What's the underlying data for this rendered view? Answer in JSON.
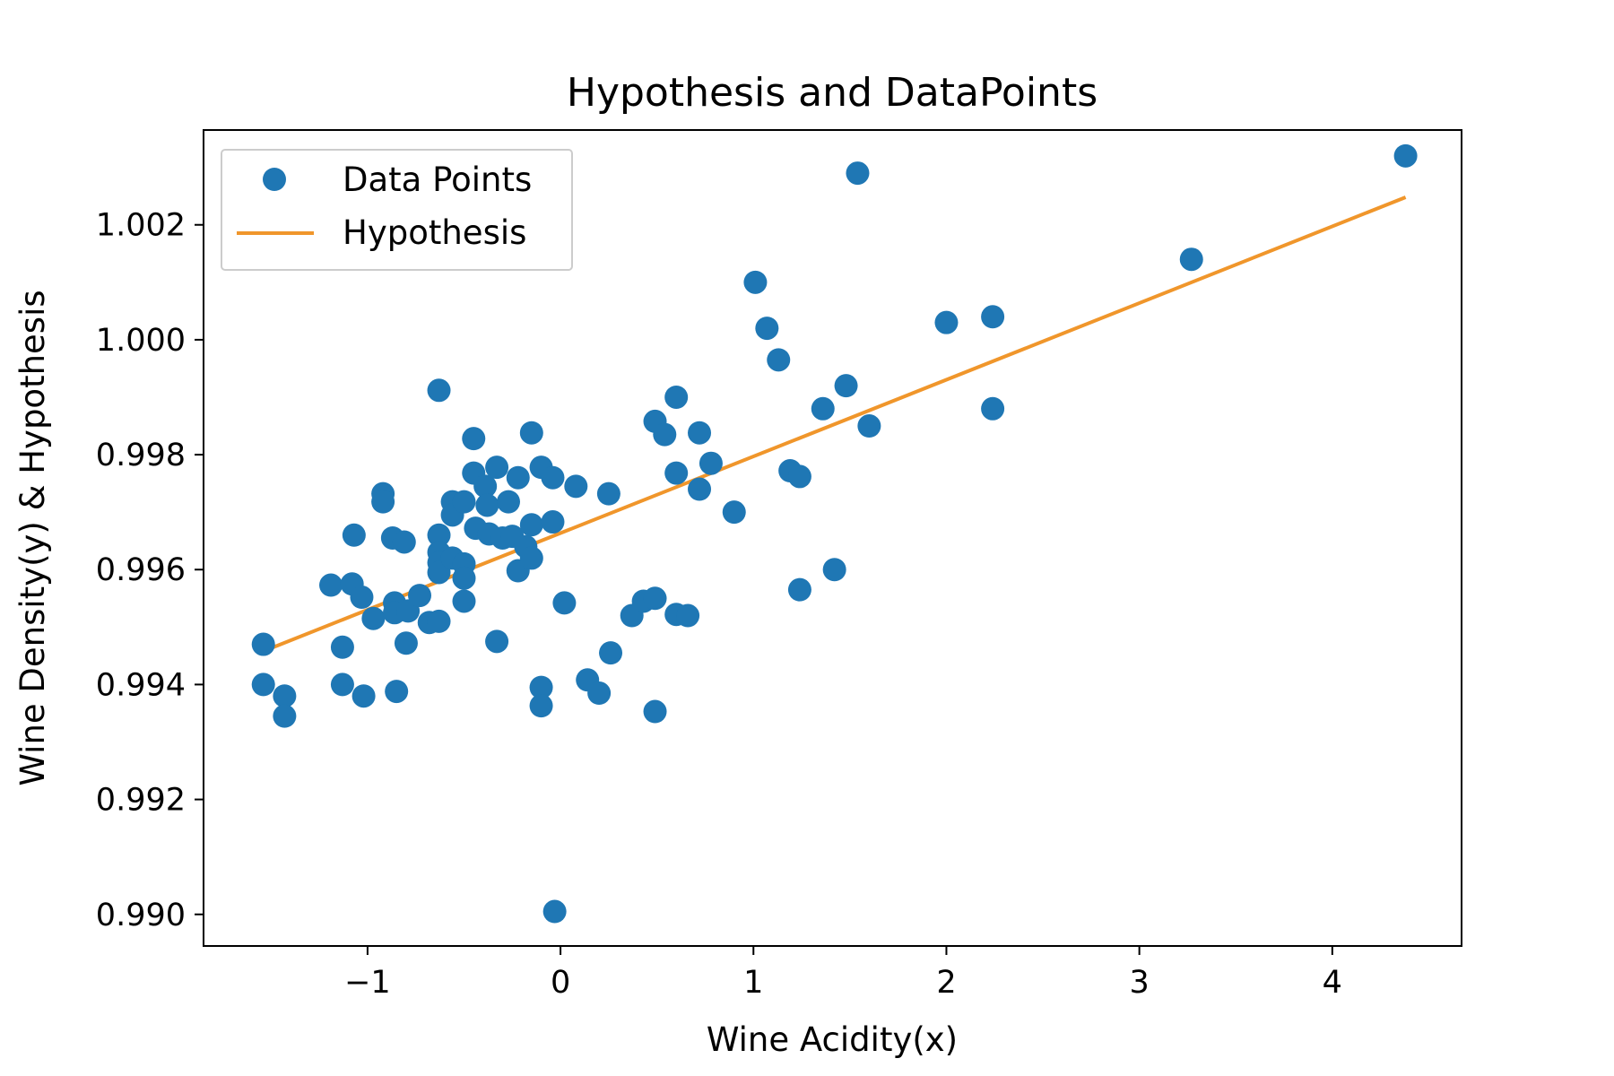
{
  "chart_data": {
    "type": "scatter",
    "title": "Hypothesis and DataPoints",
    "xlabel": "Wine Acidity(x)",
    "ylabel": "Wine Density(y) & Hypothesis",
    "xlim": [
      -1.85,
      4.67
    ],
    "ylim": [
      0.98945,
      1.00365
    ],
    "xticks": [
      {
        "value": -1,
        "label": "−1"
      },
      {
        "value": 0,
        "label": "0"
      },
      {
        "value": 1,
        "label": "1"
      },
      {
        "value": 2,
        "label": "2"
      },
      {
        "value": 3,
        "label": "3"
      },
      {
        "value": 4,
        "label": "4"
      }
    ],
    "yticks": [
      {
        "value": 0.99,
        "label": "0.990"
      },
      {
        "value": 0.992,
        "label": "0.992"
      },
      {
        "value": 0.994,
        "label": "0.994"
      },
      {
        "value": 0.996,
        "label": "0.996"
      },
      {
        "value": 0.998,
        "label": "0.998"
      },
      {
        "value": 1.0,
        "label": "1.000"
      },
      {
        "value": 1.002,
        "label": "1.002"
      }
    ],
    "grid": false,
    "legend_position": "top-left",
    "series": [
      {
        "name": "Data Points",
        "kind": "scatter",
        "color": "#1f77b4",
        "points": [
          [
            -1.54,
            0.9947
          ],
          [
            -1.54,
            0.994
          ],
          [
            -1.43,
            0.9938
          ],
          [
            -1.43,
            0.99345
          ],
          [
            -1.19,
            0.99573
          ],
          [
            -1.13,
            0.99465
          ],
          [
            -1.13,
            0.994
          ],
          [
            -1.08,
            0.99575
          ],
          [
            -1.07,
            0.9966
          ],
          [
            -1.03,
            0.99552
          ],
          [
            -1.02,
            0.9938
          ],
          [
            -0.97,
            0.99515
          ],
          [
            -0.92,
            0.99732
          ],
          [
            -0.92,
            0.99718
          ],
          [
            -0.87,
            0.99655
          ],
          [
            -0.86,
            0.99542
          ],
          [
            -0.86,
            0.99525
          ],
          [
            -0.85,
            0.99388
          ],
          [
            -0.81,
            0.99648
          ],
          [
            -0.8,
            0.99472
          ],
          [
            -0.79,
            0.99528
          ],
          [
            -0.73,
            0.99555
          ],
          [
            -0.68,
            0.99508
          ],
          [
            -0.63,
            0.99912
          ],
          [
            -0.63,
            0.9966
          ],
          [
            -0.63,
            0.9963
          ],
          [
            -0.63,
            0.99612
          ],
          [
            -0.63,
            0.99595
          ],
          [
            -0.63,
            0.9951
          ],
          [
            -0.56,
            0.99718
          ],
          [
            -0.56,
            0.99695
          ],
          [
            -0.56,
            0.9962
          ],
          [
            -0.5,
            0.99718
          ],
          [
            -0.5,
            0.9961
          ],
          [
            -0.5,
            0.99585
          ],
          [
            -0.5,
            0.99545
          ],
          [
            -0.45,
            0.99828
          ],
          [
            -0.45,
            0.99768
          ],
          [
            -0.44,
            0.99672
          ],
          [
            -0.39,
            0.99745
          ],
          [
            -0.38,
            0.99712
          ],
          [
            -0.37,
            0.99662
          ],
          [
            -0.33,
            0.99778
          ],
          [
            -0.33,
            0.99475
          ],
          [
            -0.3,
            0.99655
          ],
          [
            -0.27,
            0.99718
          ],
          [
            -0.25,
            0.99658
          ],
          [
            -0.22,
            0.9976
          ],
          [
            -0.22,
            0.99598
          ],
          [
            -0.18,
            0.9964
          ],
          [
            -0.15,
            0.99838
          ],
          [
            -0.15,
            0.99678
          ],
          [
            -0.15,
            0.9962
          ],
          [
            -0.1,
            0.99778
          ],
          [
            -0.1,
            0.99395
          ],
          [
            -0.1,
            0.99363
          ],
          [
            -0.04,
            0.9976
          ],
          [
            -0.04,
            0.99683
          ],
          [
            -0.03,
            0.99005
          ],
          [
            0.02,
            0.99542
          ],
          [
            0.08,
            0.99745
          ],
          [
            0.14,
            0.99408
          ],
          [
            0.2,
            0.99385
          ],
          [
            0.25,
            0.99732
          ],
          [
            0.26,
            0.99455
          ],
          [
            0.37,
            0.9952
          ],
          [
            0.43,
            0.99545
          ],
          [
            0.49,
            0.99858
          ],
          [
            0.49,
            0.9955
          ],
          [
            0.49,
            0.99353
          ],
          [
            0.54,
            0.99835
          ],
          [
            0.6,
            0.999
          ],
          [
            0.6,
            0.99768
          ],
          [
            0.6,
            0.99522
          ],
          [
            0.66,
            0.9952
          ],
          [
            0.72,
            0.99838
          ],
          [
            0.72,
            0.9974
          ],
          [
            0.78,
            0.99785
          ],
          [
            0.9,
            0.997
          ],
          [
            1.01,
            1.001
          ],
          [
            1.07,
            1.0002
          ],
          [
            1.13,
            0.99965
          ],
          [
            1.19,
            0.99772
          ],
          [
            1.24,
            0.99762
          ],
          [
            1.24,
            0.99565
          ],
          [
            1.36,
            0.9988
          ],
          [
            1.42,
            0.996
          ],
          [
            1.48,
            0.9992
          ],
          [
            1.54,
            1.0029
          ],
          [
            1.6,
            0.9985
          ],
          [
            2.0,
            1.0003
          ],
          [
            2.24,
            1.0004
          ],
          [
            2.24,
            0.9988
          ],
          [
            3.27,
            1.0014
          ],
          [
            4.38,
            1.0032
          ]
        ]
      },
      {
        "name": "Hypothesis",
        "kind": "line",
        "color": "#f0962b",
        "points": [
          [
            -1.54,
            0.99458
          ],
          [
            4.38,
            1.00248
          ]
        ]
      }
    ]
  }
}
